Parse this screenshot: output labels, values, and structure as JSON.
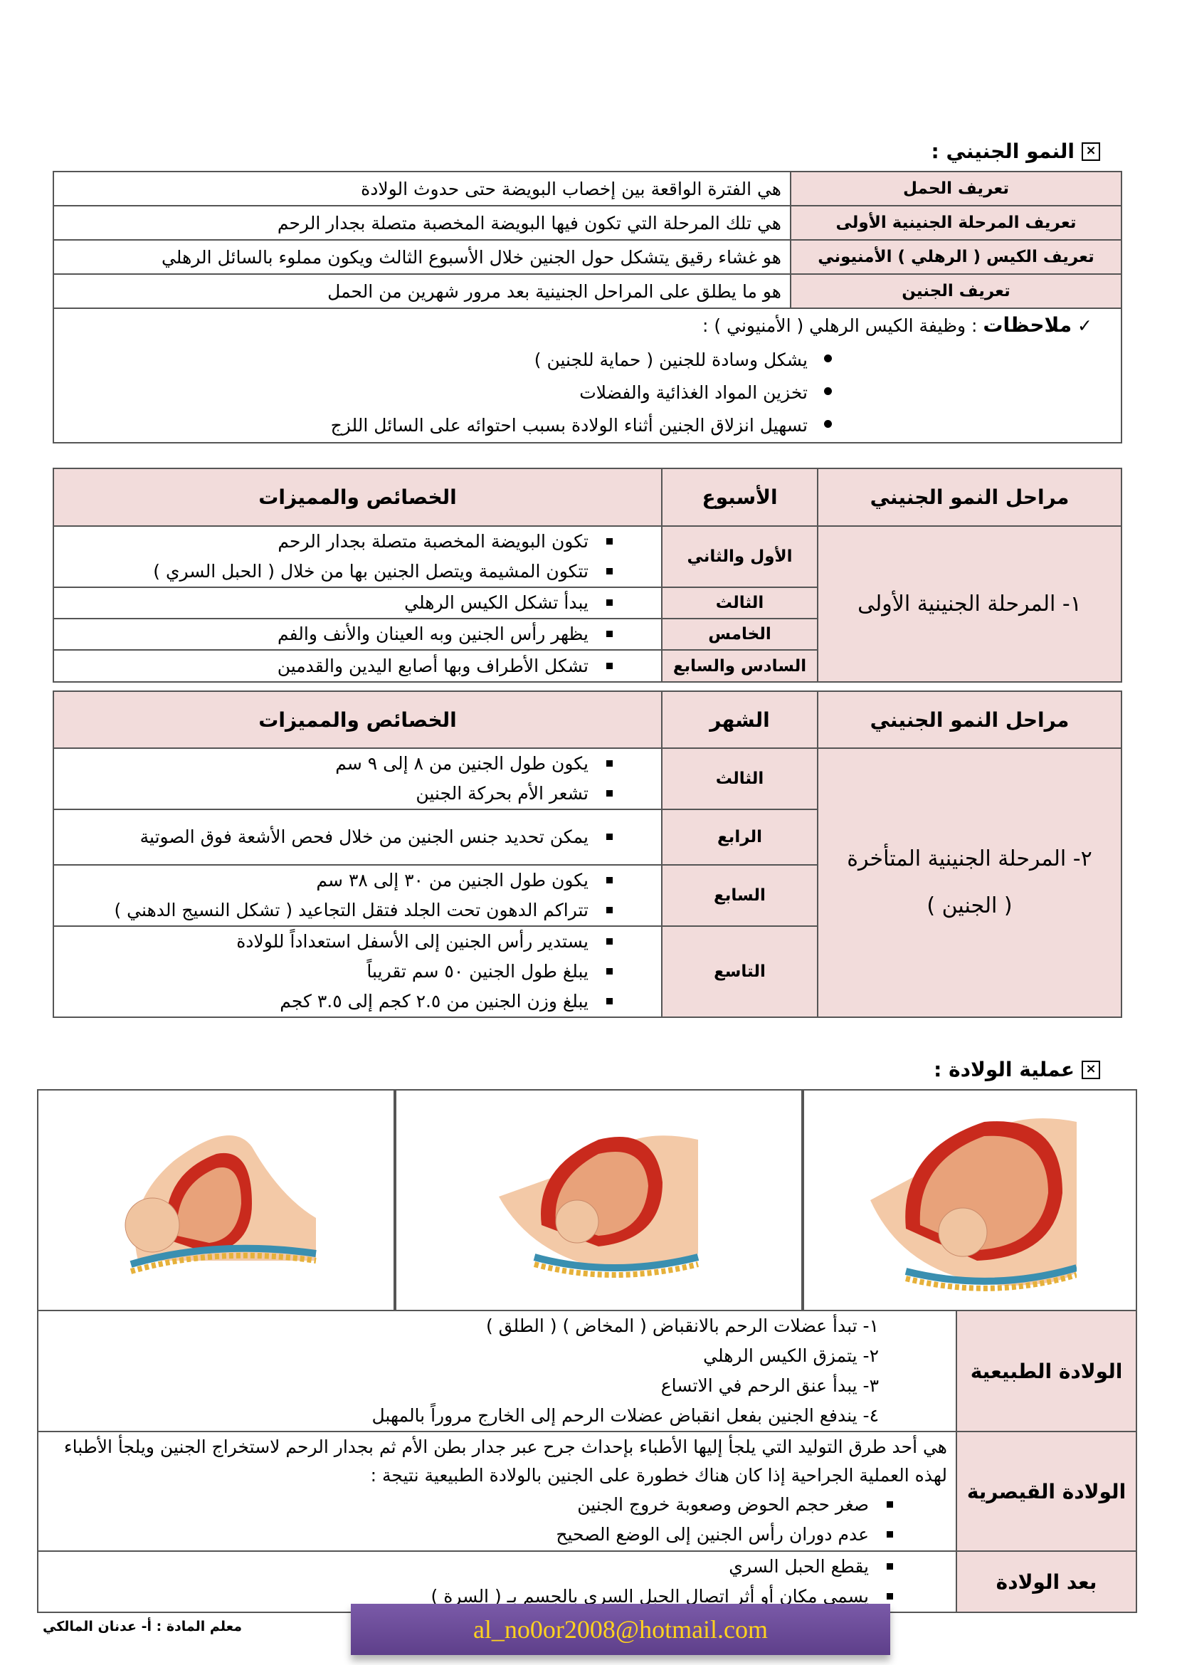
{
  "section1": {
    "title": "النمو الجنيني :",
    "definitions": [
      {
        "label": "تعريف الحمل",
        "text": "هي الفترة الواقعة بين إخصاب البويضة حتى حدوث الولادة"
      },
      {
        "label": "تعريف المرحلة الجنينية الأولى",
        "text": "هي تلك المرحلة التي تكون فيها البويضة المخصبة متصلة بجدار الرحم"
      },
      {
        "label": "تعريف الكيس ( الرهلي ) الأمنيوني",
        "text": "هو غشاء رقيق يتشكل حول الجنين خلال الأسبوع الثالث ويكون مملوء بالسائل الرهلي"
      },
      {
        "label": "تعريف الجنين",
        "text": "هو ما يطلق على المراحل الجنينية بعد مرور شهرين من الحمل"
      }
    ],
    "notes": {
      "check": "✓",
      "label": "ملاحظات",
      "intro": ": وظيفة الكيس الرهلي ( الأمنيوني ) :",
      "items": [
        "يشكل وسادة للجنين ( حماية للجنين )",
        "تخزين المواد الغذائية والفضلات",
        "تسهيل انزلاق الجنين أثناء الولادة  بسبب احتوائه على السائل اللزج"
      ]
    }
  },
  "stage1_table": {
    "headers": [
      "مراحل النمو الجنيني",
      "الأسبوع",
      "الخصائص والمميزات"
    ],
    "stage": "١-  المرحلة الجنينية الأولى",
    "rows": [
      {
        "period": "الأول والثاني",
        "items": [
          "تكون البويضة المخصبة متصلة بجدار الرحم",
          "تتكون المشيمة ويتصل الجنين بها من خلال ( الحبل السري )"
        ]
      },
      {
        "period": "الثالث",
        "items": [
          "يبدأ تشكل الكيس الرهلي"
        ]
      },
      {
        "period": "الخامس",
        "items": [
          "يظهر رأس الجنين وبه العينان والأنف والفم"
        ]
      },
      {
        "period": "السادس والسابع",
        "items": [
          "تشكل الأطراف وبها أصابع اليدين والقدمين"
        ]
      }
    ]
  },
  "stage2_table": {
    "headers": [
      "مراحل النمو الجنيني",
      "الشهر",
      "الخصائص والمميزات"
    ],
    "stage": "٢-  المرحلة الجنينية المتأخرة",
    "stage_sub": "( الجنين )",
    "rows": [
      {
        "period": "الثالث",
        "items": [
          "يكون طول الجنين من  ٨  إلى  ٩ سم",
          "تشعر الأم بحركة الجنين"
        ]
      },
      {
        "period": "الرابع",
        "items": [
          "يمكن تحديد جنس الجنين من خلال فحص الأشعة فوق الصوتية"
        ]
      },
      {
        "period": "السابع",
        "items": [
          "يكون طول الجنين من  ٣٠  إلى  ٣٨ سم",
          "تتراكم الدهون تحت الجلد فتقل التجاعيد ( تشكل النسيج الدهني )"
        ]
      },
      {
        "period": "التاسع",
        "items": [
          "يستدير رأس الجنين إلى الأسفل استعداداً للولادة",
          "يبلغ طول الجنين  ٥٠ سم تقريباً",
          "يبلغ وزن الجنين من  ٢.٥ كجم  إلى  ٣.٥ كجم"
        ]
      }
    ]
  },
  "section2": {
    "title": "عملية الولادة :",
    "natural": {
      "label": "الولادة الطبيعية",
      "steps": [
        "١-  تبدأ عضلات الرحم بالانقباض ( المخاض ) ( الطلق )",
        "٢-  يتمزق الكيس الرهلي",
        "٣-  يبدأ عنق الرحم في الاتساع",
        "٤-  يندفع الجنين بفعل انقباض عضلات الرحم إلى الخارج مروراً بالمهبل"
      ]
    },
    "cesarean": {
      "label": "الولادة القيصرية",
      "text": "هي أحد طرق التوليد التي يلجأ إليها الأطباء بإحداث جرح عبر جدار بطن الأم ثم بجدار الرحم لاستخراج الجنين ويلجأ الأطباء لهذه العملية الجراحية إذا  كان هناك خطورة على الجنين بالولادة الطبيعية نتيجة :",
      "items": [
        "صغر حجم الحوض وصعوبة خروج الجنين",
        "عدم دوران رأس الجنين إلى الوضع الصحيح"
      ]
    },
    "after": {
      "label": "بعد الولادة",
      "items": [
        "يقطع الحبل السري",
        "يسمى مكان أو أثر اتصال الحبل السري بالجسم بـ ( السرة )"
      ]
    }
  },
  "footer": {
    "teacher": "معلم المادة : أ- عدنان المالكي",
    "email": "al_no0or2008@hotmail.com"
  },
  "colors": {
    "label_bg": "#f2dcdb",
    "email_bg": "#6a4a98",
    "email_text": "#ffd21f"
  }
}
